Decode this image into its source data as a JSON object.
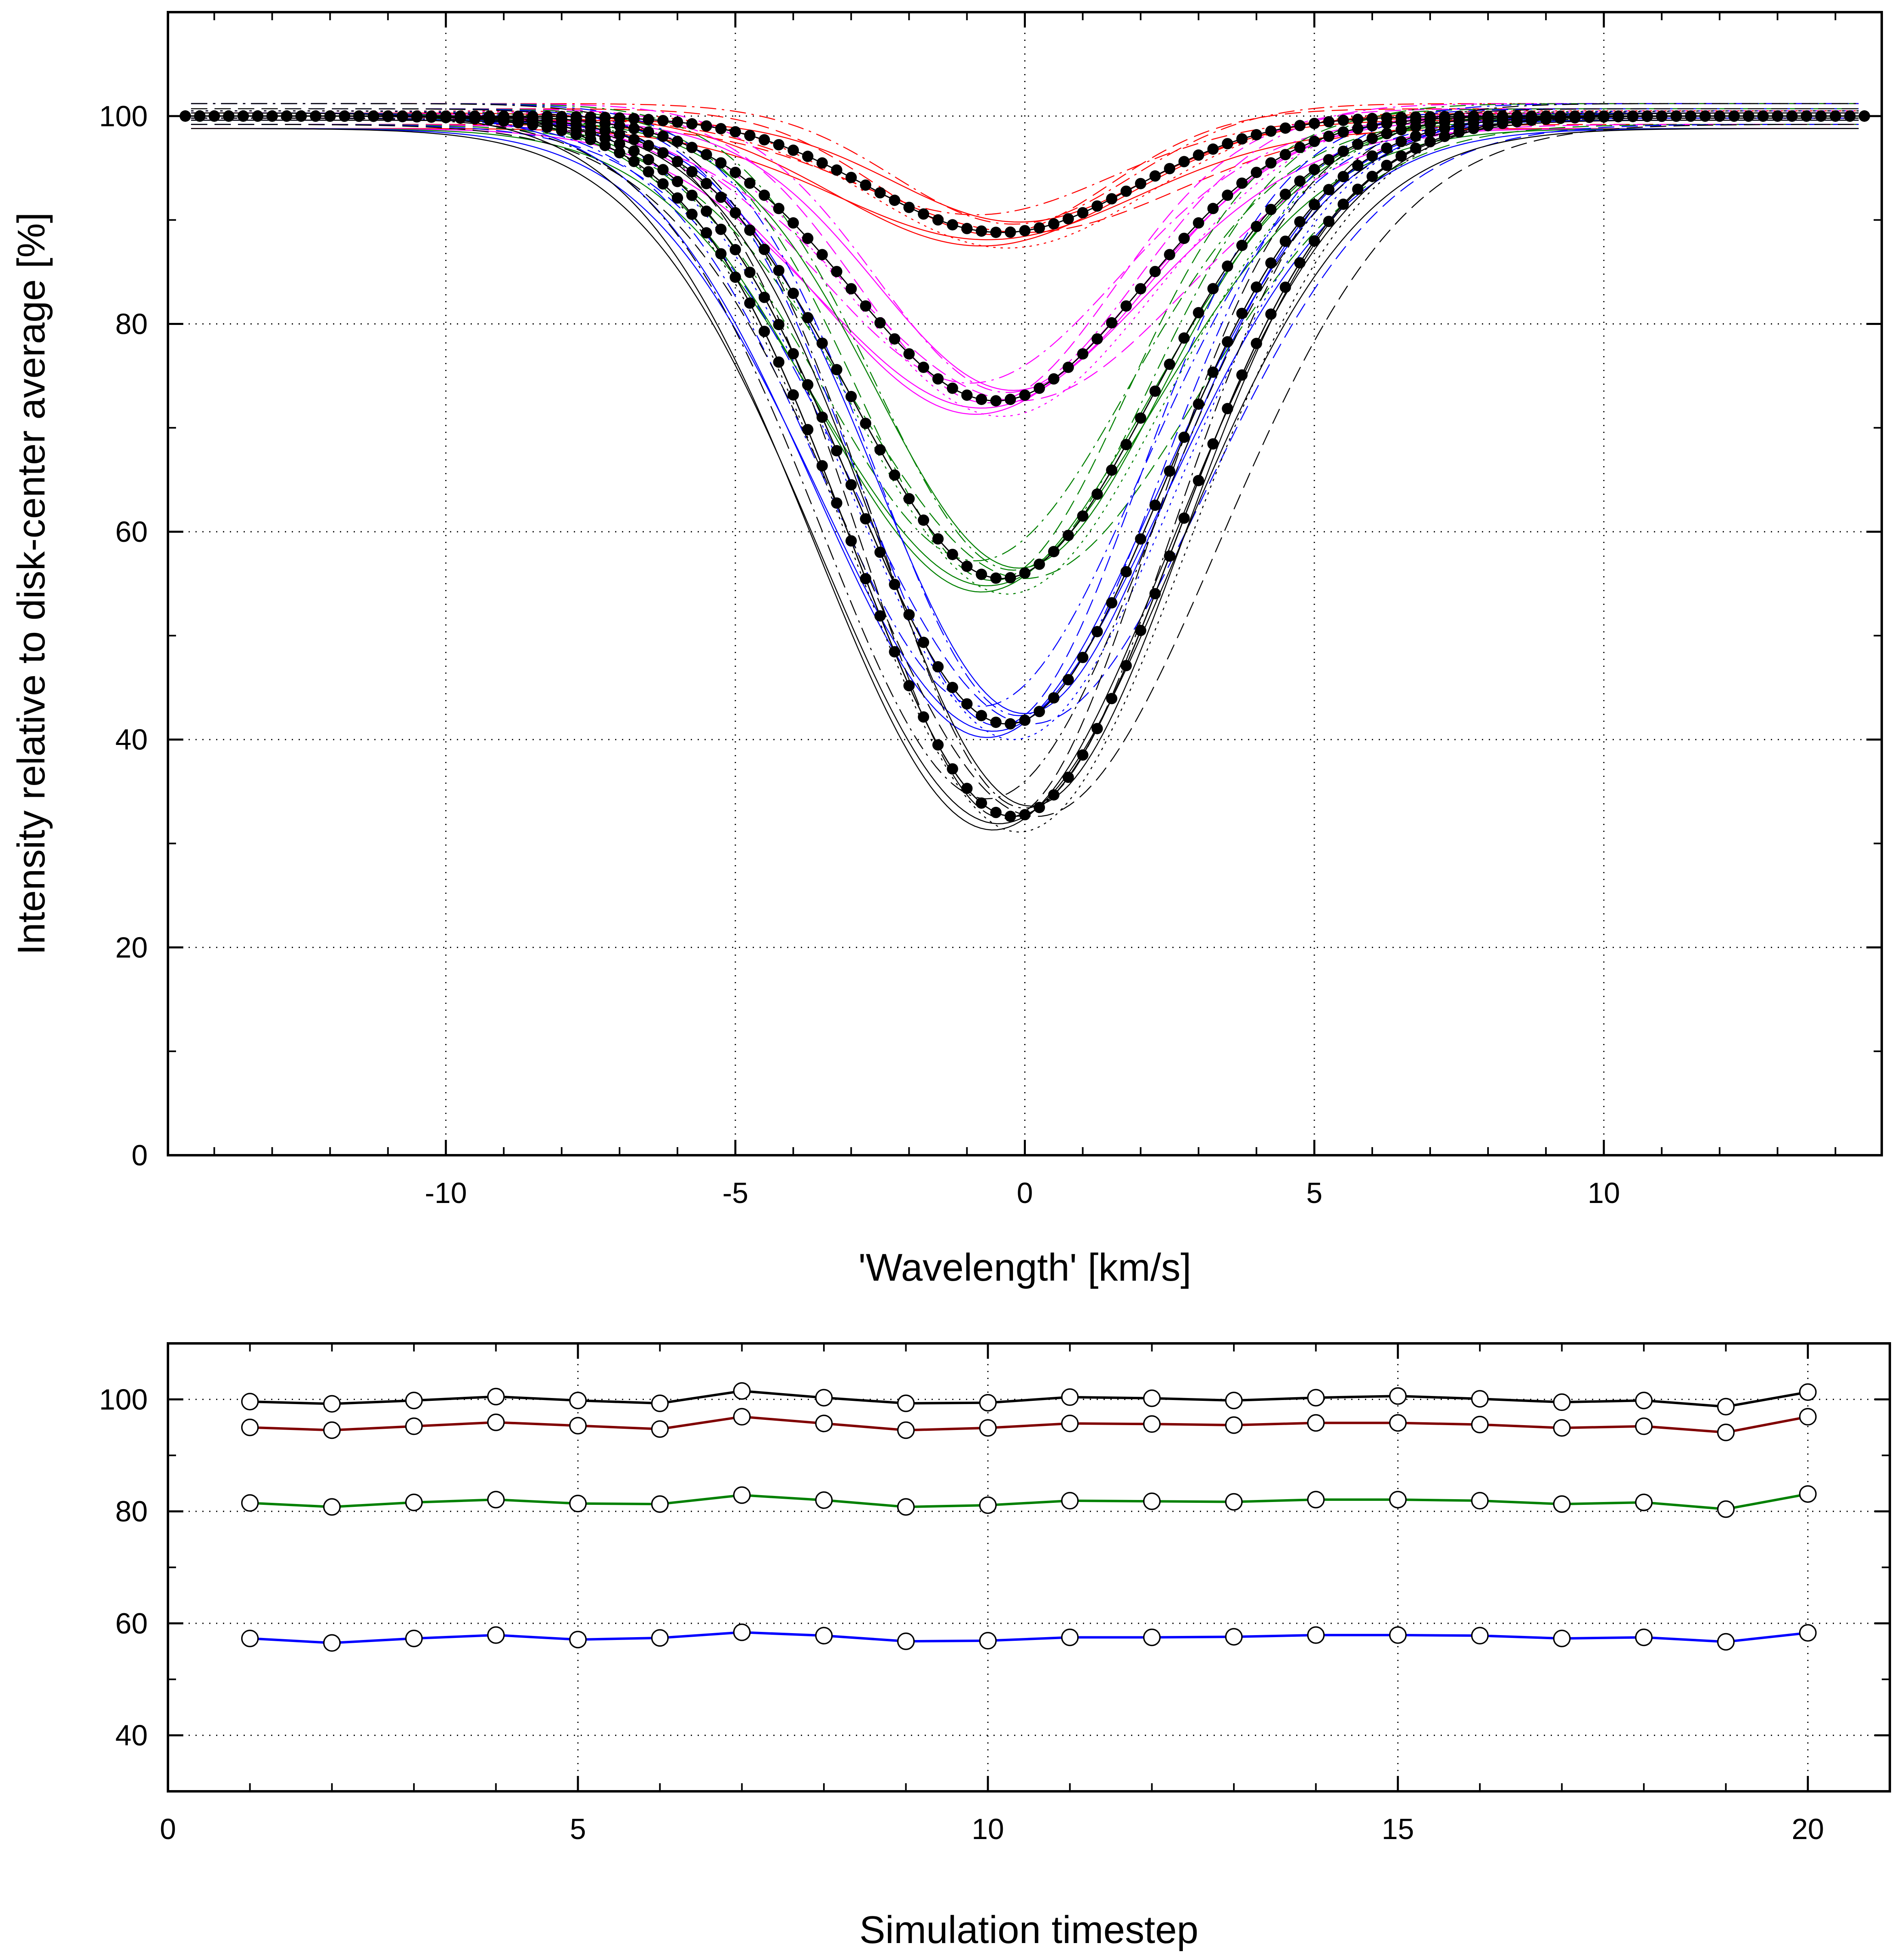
{
  "chart_data": [
    {
      "type": "line",
      "xlabel": "'Wavelength'  [km/s]",
      "ylabel": "Intensity relative to disk-center average  [%]",
      "xlim": [
        -14.8,
        14.8
      ],
      "ylim": [
        0,
        110
      ],
      "xticks": [
        -10,
        -5,
        0,
        5,
        10
      ],
      "yticks": [
        0,
        20,
        40,
        60,
        80,
        100
      ],
      "grid": true,
      "series": [
        {
          "color": "#ff0000",
          "center": -0.4,
          "depth": 11.2,
          "width": 2.3,
          "marker": "filled-circle"
        },
        {
          "color": "#ff00ff",
          "center": -0.5,
          "depth": 27.4,
          "width": 2.5,
          "marker": "filled-circle"
        },
        {
          "color": "#008000",
          "center": -0.4,
          "depth": 44.5,
          "width": 2.6,
          "marker": "filled-circle"
        },
        {
          "color": "#0000ff",
          "center": -0.3,
          "depth": 58.5,
          "width": 2.7,
          "marker": "filled-circle"
        },
        {
          "color": "#000000",
          "center": -0.2,
          "depth": 67.4,
          "width": 2.8,
          "marker": "filled-circle"
        }
      ]
    },
    {
      "type": "line",
      "xlabel": "Simulation timestep",
      "ylabel": "",
      "xlim": [
        0,
        21
      ],
      "ylim": [
        30,
        110
      ],
      "xticks": [
        0,
        5,
        10,
        15,
        20
      ],
      "yticks": [
        40,
        60,
        80,
        100
      ],
      "grid": true,
      "x": [
        1,
        2,
        3,
        4,
        5,
        6,
        7,
        8,
        9,
        10,
        11,
        12,
        13,
        14,
        15,
        16,
        17,
        18,
        19,
        20
      ],
      "series": [
        {
          "color": "#000000",
          "values": [
            99.6,
            99.2,
            99.8,
            100.5,
            99.8,
            99.3,
            101.5,
            100.3,
            99.3,
            99.4,
            100.4,
            100.2,
            99.8,
            100.3,
            100.6,
            100.1,
            99.5,
            99.8,
            98.7,
            101.3
          ]
        },
        {
          "color": "#800000",
          "values": [
            95.0,
            94.5,
            95.2,
            95.9,
            95.3,
            94.7,
            96.9,
            95.7,
            94.5,
            94.9,
            95.7,
            95.6,
            95.4,
            95.8,
            95.8,
            95.5,
            94.9,
            95.2,
            94.1,
            96.9
          ]
        },
        {
          "color": "#008000",
          "values": [
            81.5,
            80.8,
            81.6,
            82.1,
            81.4,
            81.3,
            82.9,
            82.0,
            80.8,
            81.1,
            81.9,
            81.8,
            81.7,
            82.1,
            82.1,
            81.9,
            81.3,
            81.6,
            80.4,
            83.1
          ]
        },
        {
          "color": "#0000ff",
          "values": [
            57.3,
            56.5,
            57.3,
            57.9,
            57.1,
            57.4,
            58.4,
            57.8,
            56.8,
            56.9,
            57.5,
            57.5,
            57.6,
            57.9,
            57.9,
            57.8,
            57.3,
            57.5,
            56.7,
            58.3
          ]
        }
      ]
    }
  ]
}
